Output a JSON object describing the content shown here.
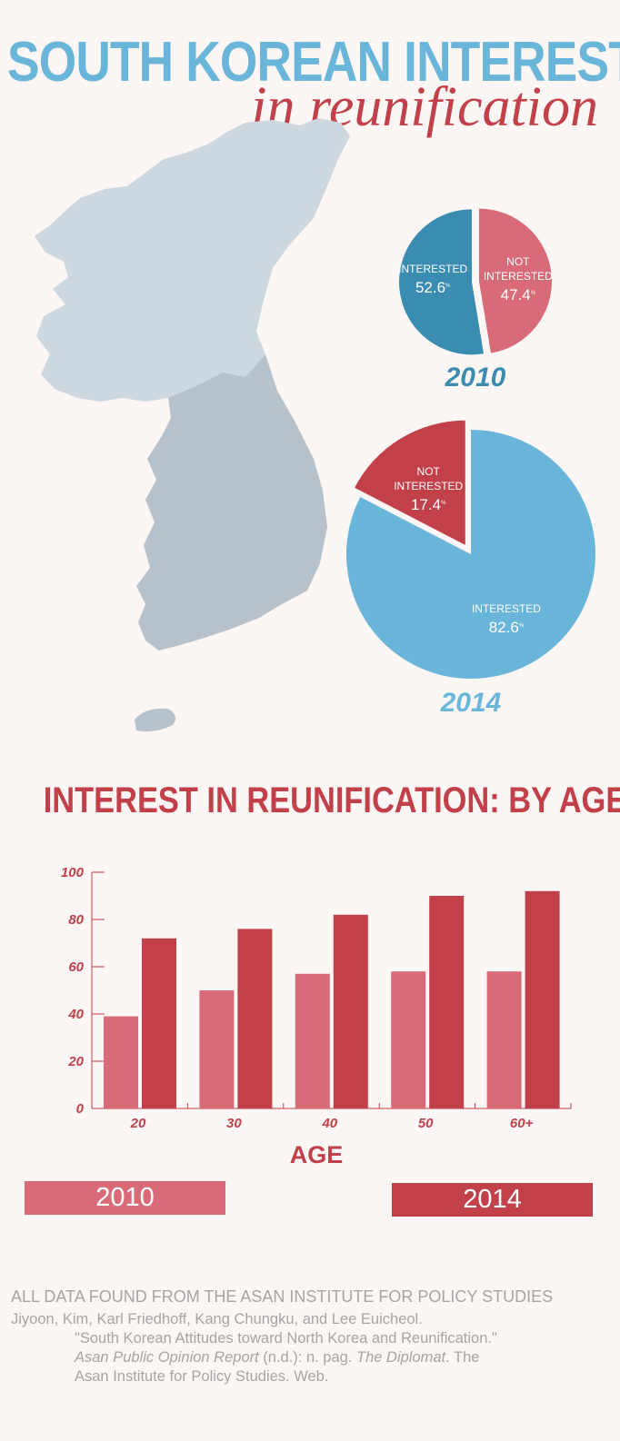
{
  "title": {
    "line1": "SOUTH KOREAN INTEREST",
    "line2": "in reunification"
  },
  "colors": {
    "pie2010_interested": "#3a8db1",
    "pie2010_not": "#d96b79",
    "pie2014_interested": "#6ab5da",
    "pie2014_not": "#c2404a",
    "bar2010": "#d96b79",
    "bar2014": "#c2404a",
    "north_korea_map": "#cdd8e1",
    "south_korea_map": "#b8c2cc"
  },
  "pies": [
    {
      "year": "2010",
      "slices": [
        {
          "label": "INTERESTED",
          "value": 52.6,
          "value_text": "52.6",
          "unit": "%"
        },
        {
          "label_lines": [
            "NOT",
            "INTERESTED"
          ],
          "value": 47.4,
          "value_text": "47.4",
          "unit": "%"
        }
      ]
    },
    {
      "year": "2014",
      "slices": [
        {
          "label": "INTERESTED",
          "value": 82.6,
          "value_text": "82.6",
          "unit": "%"
        },
        {
          "label_lines": [
            "NOT",
            "INTERESTED"
          ],
          "value": 17.4,
          "value_text": "17.4",
          "unit": "%"
        }
      ]
    }
  ],
  "chart_data": {
    "type": "bar",
    "title": "INTEREST IN REUNIFICATION: BY AGE",
    "xlabel": "AGE",
    "ylabel": "",
    "categories": [
      "20",
      "30",
      "40",
      "50",
      "60+"
    ],
    "yticks": [
      "0",
      "20",
      "40",
      "60",
      "80",
      "100"
    ],
    "ylim": [
      0,
      100
    ],
    "grid": false,
    "series": [
      {
        "name": "2010",
        "values": [
          39,
          50,
          57,
          58,
          58
        ]
      },
      {
        "name": "2014",
        "values": [
          72,
          76,
          82,
          90,
          92
        ]
      }
    ]
  },
  "source": {
    "heading": "ALL DATA FOUND FROM THE ASAN INSTITUTE FOR POLICY STUDIES",
    "authors": "Jiyoon, Kim, Karl Friedhoff, Kang Chungku, and Lee Euicheol.",
    "article": "\"South Korean Attitudes toward North Korea and Reunification.\"",
    "journal": "Asan Public Opinion Report",
    "journal_rest": " (n.d.): n. pag. ",
    "publication": "The Diplomat",
    "publication_rest": ". The",
    "last_line": "Asan Institute for Policy Studies. Web."
  }
}
